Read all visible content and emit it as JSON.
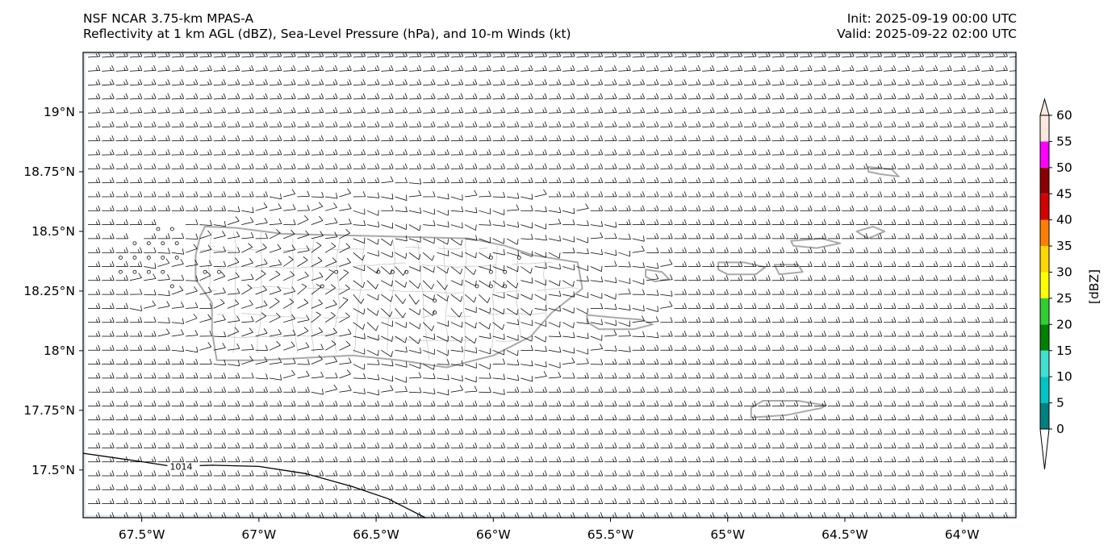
{
  "header": {
    "title_line1": "NSF NCAR 3.75-km MPAS-A",
    "title_line2": "Reflectivity at 1 km AGL (dBZ), Sea-Level Pressure (hPa), and 10-m Winds (kt)",
    "init": "Init: 2025-09-19 00:00 UTC",
    "valid": "Valid: 2025-09-22 02:00 UTC"
  },
  "map": {
    "extent_lon": [
      -67.75,
      -63.77
    ],
    "extent_lat": [
      17.3,
      19.25
    ],
    "lat_ticks": [
      {
        "value": 19.0,
        "label": "19°N"
      },
      {
        "value": 18.75,
        "label": "18.75°N"
      },
      {
        "value": 18.5,
        "label": "18.5°N"
      },
      {
        "value": 18.25,
        "label": "18.25°N"
      },
      {
        "value": 18.0,
        "label": "18°N"
      },
      {
        "value": 17.75,
        "label": "17.75°N"
      },
      {
        "value": 17.5,
        "label": "17.5°N"
      }
    ],
    "lon_ticks": [
      {
        "value": -67.5,
        "label": "67.5°W"
      },
      {
        "value": -67.0,
        "label": "67°W"
      },
      {
        "value": -66.5,
        "label": "66.5°W"
      },
      {
        "value": -66.0,
        "label": "66°W"
      },
      {
        "value": -65.5,
        "label": "65.5°W"
      },
      {
        "value": -65.0,
        "label": "65°W"
      },
      {
        "value": -64.5,
        "label": "64.5°W"
      },
      {
        "value": -64.0,
        "label": "64°W"
      }
    ],
    "isobar_label": "1014",
    "isobar": [
      [
        -67.75,
        17.57
      ],
      [
        -67.5,
        17.535
      ],
      [
        -67.37,
        17.515
      ],
      [
        -67.2,
        17.52
      ],
      [
        -67.0,
        17.515
      ],
      [
        -66.8,
        17.485
      ],
      [
        -66.6,
        17.43
      ],
      [
        -66.45,
        17.38
      ],
      [
        -66.35,
        17.33
      ],
      [
        -66.29,
        17.3
      ]
    ],
    "land_color": "#a9a9a9",
    "ocean_color": "#ffffff",
    "border_color": "#dce6f0",
    "islands": [
      {
        "name": "puerto-rico",
        "coords": [
          [
            -67.23,
            18.52
          ],
          [
            -67.1,
            18.515
          ],
          [
            -66.9,
            18.49
          ],
          [
            -66.7,
            18.485
          ],
          [
            -66.5,
            18.48
          ],
          [
            -66.3,
            18.475
          ],
          [
            -66.1,
            18.47
          ],
          [
            -65.95,
            18.44
          ],
          [
            -65.83,
            18.4
          ],
          [
            -65.64,
            18.37
          ],
          [
            -65.62,
            18.26
          ],
          [
            -65.75,
            18.16
          ],
          [
            -65.84,
            18.06
          ],
          [
            -66.0,
            17.98
          ],
          [
            -66.2,
            17.93
          ],
          [
            -66.4,
            17.96
          ],
          [
            -66.6,
            17.98
          ],
          [
            -66.8,
            17.97
          ],
          [
            -67.0,
            17.96
          ],
          [
            -67.18,
            17.96
          ],
          [
            -67.2,
            18.08
          ],
          [
            -67.2,
            18.2
          ],
          [
            -67.27,
            18.3
          ],
          [
            -67.27,
            18.4
          ],
          [
            -67.25,
            18.48
          ]
        ]
      },
      {
        "name": "vieques",
        "coords": [
          [
            -65.6,
            18.15
          ],
          [
            -65.5,
            18.14
          ],
          [
            -65.37,
            18.13
          ],
          [
            -65.32,
            18.11
          ],
          [
            -65.4,
            18.09
          ],
          [
            -65.55,
            18.09
          ],
          [
            -65.6,
            18.12
          ]
        ]
      },
      {
        "name": "culebra",
        "coords": [
          [
            -65.35,
            18.34
          ],
          [
            -65.28,
            18.33
          ],
          [
            -65.25,
            18.3
          ],
          [
            -65.31,
            18.29
          ],
          [
            -65.35,
            18.31
          ]
        ]
      },
      {
        "name": "st-thomas",
        "coords": [
          [
            -65.04,
            18.37
          ],
          [
            -64.93,
            18.37
          ],
          [
            -64.84,
            18.35
          ],
          [
            -64.88,
            18.32
          ],
          [
            -65.0,
            18.32
          ],
          [
            -65.04,
            18.34
          ]
        ]
      },
      {
        "name": "st-john",
        "coords": [
          [
            -64.8,
            18.36
          ],
          [
            -64.7,
            18.36
          ],
          [
            -64.68,
            18.33
          ],
          [
            -64.78,
            18.32
          ]
        ]
      },
      {
        "name": "tortola",
        "coords": [
          [
            -64.73,
            18.46
          ],
          [
            -64.6,
            18.47
          ],
          [
            -64.52,
            18.45
          ],
          [
            -64.62,
            18.43
          ],
          [
            -64.72,
            18.44
          ]
        ]
      },
      {
        "name": "virgin-gorda",
        "coords": [
          [
            -64.45,
            18.5
          ],
          [
            -64.38,
            18.52
          ],
          [
            -64.33,
            18.5
          ],
          [
            -64.4,
            18.47
          ]
        ]
      },
      {
        "name": "st-croix",
        "coords": [
          [
            -64.9,
            17.72
          ],
          [
            -64.75,
            17.73
          ],
          [
            -64.6,
            17.76
          ],
          [
            -64.58,
            17.77
          ],
          [
            -64.7,
            17.79
          ],
          [
            -64.85,
            17.79
          ],
          [
            -64.9,
            17.76
          ]
        ]
      },
      {
        "name": "anegada",
        "coords": [
          [
            -64.4,
            18.77
          ],
          [
            -64.3,
            18.76
          ],
          [
            -64.27,
            18.73
          ],
          [
            -64.35,
            18.74
          ],
          [
            -64.4,
            18.75
          ]
        ]
      }
    ],
    "calm_points": [
      [
        -67.43,
        18.51
      ],
      [
        -67.37,
        18.51
      ],
      [
        -67.53,
        18.45
      ],
      [
        -67.47,
        18.45
      ],
      [
        -67.41,
        18.45
      ],
      [
        -67.35,
        18.45
      ],
      [
        -67.59,
        18.39
      ],
      [
        -67.53,
        18.39
      ],
      [
        -67.47,
        18.39
      ],
      [
        -67.41,
        18.39
      ],
      [
        -67.35,
        18.39
      ],
      [
        -67.59,
        18.33
      ],
      [
        -67.53,
        18.33
      ],
      [
        -67.47,
        18.33
      ],
      [
        -67.41,
        18.33
      ],
      [
        -67.23,
        18.33
      ],
      [
        -67.17,
        18.33
      ],
      [
        -67.37,
        18.27
      ],
      [
        -66.73,
        18.27
      ],
      [
        -66.67,
        18.33
      ],
      [
        -66.49,
        18.33
      ],
      [
        -66.43,
        18.33
      ],
      [
        -66.37,
        18.33
      ],
      [
        -66.25,
        18.21
      ],
      [
        -66.25,
        18.16
      ],
      [
        -66.07,
        18.27
      ],
      [
        -66.01,
        18.33
      ],
      [
        -65.95,
        18.33
      ],
      [
        -65.89,
        18.39
      ],
      [
        -66.01,
        18.27
      ],
      [
        -65.95,
        18.27
      ],
      [
        -66.01,
        18.39
      ]
    ]
  },
  "colorbar": {
    "label": "[dBZ]",
    "levels": [
      0,
      5,
      10,
      15,
      20,
      25,
      30,
      35,
      40,
      45,
      50,
      55,
      60
    ],
    "tick_labels": [
      "0",
      "5",
      "10",
      "15",
      "20",
      "25",
      "30",
      "35",
      "40",
      "45",
      "50",
      "55",
      "60"
    ],
    "colors": [
      "#008080",
      "#00c5c5",
      "#40e0d0",
      "#008000",
      "#32cd32",
      "#ffff00",
      "#ffd700",
      "#ff7f00",
      "#d40000",
      "#8b0000",
      "#ff00ff",
      "#fde8e0"
    ],
    "under_color": "#ffffff",
    "over_color": "#fde8e0"
  }
}
